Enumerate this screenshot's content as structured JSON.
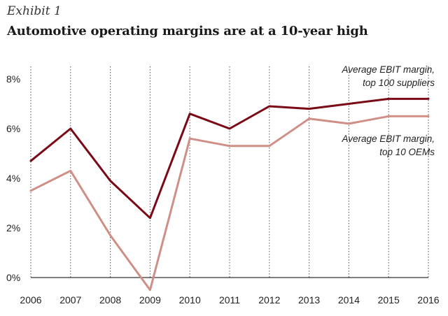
{
  "header": {
    "exhibit": "Exhibit 1",
    "title": "Automotive operating margins are at a 10-year high"
  },
  "colors": {
    "suppliers": "#7b0a17",
    "oems": "#cf8f86",
    "baseline": "#333333",
    "grid": "#555555"
  },
  "chart_data": {
    "type": "line",
    "x": [
      "2006",
      "2007",
      "2008",
      "2009",
      "2010",
      "2011",
      "2012",
      "2013",
      "2014",
      "2015",
      "2016"
    ],
    "series": [
      {
        "name": "Average EBIT margin, top 100 suppliers",
        "name_lines": [
          "Average EBIT margin,",
          "top 100 suppliers"
        ],
        "color": "#7b0a17",
        "values": [
          4.7,
          6.0,
          3.9,
          2.4,
          6.6,
          6.0,
          6.9,
          6.8,
          7.0,
          7.2,
          7.2
        ]
      },
      {
        "name": "Average EBIT margin, top 10 OEMs",
        "name_lines": [
          "Average EBIT margin,",
          "top 10 OEMs"
        ],
        "color": "#cf8f86",
        "values": [
          3.5,
          4.3,
          1.7,
          -0.5,
          5.6,
          5.3,
          5.3,
          6.4,
          6.2,
          6.5,
          6.5
        ]
      }
    ],
    "yticks": [
      "0%",
      "2%",
      "4%",
      "6%",
      "8%"
    ],
    "ytick_values": [
      0,
      2,
      4,
      6,
      8
    ],
    "ylim": [
      -0.5,
      8
    ],
    "xlabel": "",
    "ylabel": "",
    "grid": "vertical dotted",
    "legend": "inline labels"
  }
}
